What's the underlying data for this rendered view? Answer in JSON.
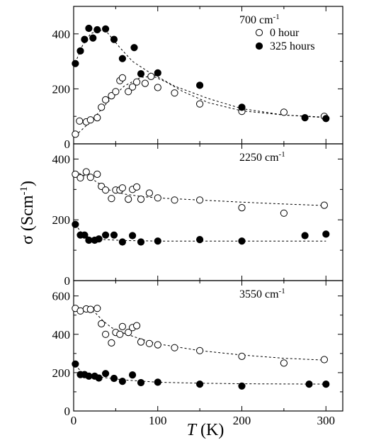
{
  "chart_data": [
    {
      "type": "scatter",
      "title": "700 cm",
      "title_sup": "-1",
      "legend_position": "top-right",
      "xlim": [
        0,
        320
      ],
      "ylim": [
        0,
        500
      ],
      "yticks": [
        0,
        200,
        400
      ],
      "series": [
        {
          "name": "0 hour",
          "marker": "open-circle",
          "points": [
            [
              2,
              35
            ],
            [
              7,
              83
            ],
            [
              15,
              80
            ],
            [
              20,
              87
            ],
            [
              28,
              95
            ],
            [
              33,
              133
            ],
            [
              38,
              160
            ],
            [
              45,
              175
            ],
            [
              50,
              190
            ],
            [
              55,
              230
            ],
            [
              58,
              240
            ],
            [
              65,
              190
            ],
            [
              70,
              207
            ],
            [
              75,
              225
            ],
            [
              85,
              220
            ],
            [
              92,
              245
            ],
            [
              100,
              205
            ],
            [
              120,
              185
            ],
            [
              150,
              145
            ],
            [
              200,
              118
            ],
            [
              250,
              115
            ],
            [
              298,
              100
            ]
          ],
          "fit": [
            [
              2,
              30
            ],
            [
              20,
              80
            ],
            [
              40,
              150
            ],
            [
              60,
              210
            ],
            [
              80,
              242
            ],
            [
              95,
              245
            ],
            [
              110,
              225
            ],
            [
              130,
              190
            ],
            [
              160,
              150
            ],
            [
              200,
              120
            ],
            [
              250,
              105
            ],
            [
              300,
              97
            ]
          ]
        },
        {
          "name": "325 hours",
          "marker": "filled-circle",
          "points": [
            [
              2,
              292
            ],
            [
              8,
              338
            ],
            [
              13,
              380
            ],
            [
              18,
              420
            ],
            [
              23,
              385
            ],
            [
              28,
              415
            ],
            [
              38,
              418
            ],
            [
              48,
              380
            ],
            [
              58,
              310
            ],
            [
              72,
              350
            ],
            [
              80,
              255
            ],
            [
              100,
              258
            ],
            [
              150,
              213
            ],
            [
              200,
              133
            ],
            [
              275,
              95
            ],
            [
              300,
              92
            ]
          ],
          "fit": [
            [
              2,
              295
            ],
            [
              10,
              355
            ],
            [
              20,
              400
            ],
            [
              30,
              415
            ],
            [
              40,
              405
            ],
            [
              55,
              350
            ],
            [
              70,
              300
            ],
            [
              90,
              260
            ],
            [
              120,
              210
            ],
            [
              160,
              165
            ],
            [
              200,
              128
            ],
            [
              250,
              105
            ],
            [
              300,
              95
            ]
          ]
        }
      ]
    },
    {
      "type": "scatter",
      "title": "2250 cm",
      "title_sup": "-1",
      "xlim": [
        0,
        320
      ],
      "ylim": [
        0,
        450
      ],
      "yticks": [
        0,
        200,
        400
      ],
      "series": [
        {
          "name": "0 hour",
          "marker": "open-circle",
          "points": [
            [
              2,
              350
            ],
            [
              8,
              338
            ],
            [
              15,
              358
            ],
            [
              20,
              340
            ],
            [
              28,
              350
            ],
            [
              33,
              310
            ],
            [
              38,
              298
            ],
            [
              45,
              270
            ],
            [
              50,
              298
            ],
            [
              55,
              298
            ],
            [
              58,
              305
            ],
            [
              65,
              268
            ],
            [
              70,
              300
            ],
            [
              75,
              308
            ],
            [
              80,
              268
            ],
            [
              90,
              288
            ],
            [
              100,
              272
            ],
            [
              120,
              265
            ],
            [
              150,
              265
            ],
            [
              200,
              240
            ],
            [
              250,
              222
            ],
            [
              298,
              248
            ]
          ],
          "fit": [
            [
              2,
              360
            ],
            [
              10,
              348
            ],
            [
              20,
              338
            ],
            [
              30,
              320
            ],
            [
              40,
              300
            ],
            [
              60,
              285
            ],
            [
              80,
              277
            ],
            [
              100,
              272
            ],
            [
              150,
              265
            ],
            [
              200,
              258
            ],
            [
              250,
              252
            ],
            [
              300,
              247
            ]
          ]
        },
        {
          "name": "325 hours",
          "marker": "filled-circle",
          "points": [
            [
              2,
              185
            ],
            [
              8,
              150
            ],
            [
              13,
              150
            ],
            [
              18,
              133
            ],
            [
              25,
              133
            ],
            [
              30,
              137
            ],
            [
              38,
              150
            ],
            [
              48,
              150
            ],
            [
              58,
              127
            ],
            [
              70,
              148
            ],
            [
              80,
              127
            ],
            [
              100,
              130
            ],
            [
              150,
              135
            ],
            [
              200,
              130
            ],
            [
              275,
              148
            ],
            [
              300,
              153
            ]
          ],
          "fit": [
            [
              2,
              185
            ],
            [
              10,
              155
            ],
            [
              20,
              140
            ],
            [
              35,
              135
            ],
            [
              60,
              132
            ],
            [
              100,
              130
            ],
            [
              200,
              130
            ],
            [
              300,
              130
            ]
          ]
        }
      ]
    },
    {
      "type": "scatter",
      "title": "3550 cm",
      "title_sup": "-1",
      "xlabel": "T (K)",
      "xlim": [
        0,
        320
      ],
      "ylim": [
        0,
        680
      ],
      "yticks": [
        0,
        200,
        400,
        600
      ],
      "xticks": [
        0,
        100,
        200,
        300
      ],
      "series": [
        {
          "name": "0 hour",
          "marker": "open-circle",
          "points": [
            [
              2,
              535
            ],
            [
              8,
              522
            ],
            [
              15,
              532
            ],
            [
              20,
              530
            ],
            [
              28,
              535
            ],
            [
              33,
              455
            ],
            [
              38,
              400
            ],
            [
              45,
              355
            ],
            [
              50,
              410
            ],
            [
              55,
              400
            ],
            [
              58,
              440
            ],
            [
              65,
              410
            ],
            [
              70,
              435
            ],
            [
              75,
              445
            ],
            [
              80,
              360
            ],
            [
              90,
              352
            ],
            [
              100,
              345
            ],
            [
              120,
              330
            ],
            [
              150,
              315
            ],
            [
              200,
              285
            ],
            [
              250,
              250
            ],
            [
              298,
              268
            ]
          ],
          "fit": [
            [
              2,
              538
            ],
            [
              15,
              530
            ],
            [
              25,
              515
            ],
            [
              35,
              470
            ],
            [
              45,
              435
            ],
            [
              60,
              405
            ],
            [
              80,
              375
            ],
            [
              100,
              350
            ],
            [
              150,
              315
            ],
            [
              200,
              292
            ],
            [
              250,
              275
            ],
            [
              300,
              265
            ]
          ]
        },
        {
          "name": "325 hours",
          "marker": "filled-circle",
          "points": [
            [
              2,
              245
            ],
            [
              8,
              190
            ],
            [
              13,
              190
            ],
            [
              18,
              182
            ],
            [
              25,
              182
            ],
            [
              30,
              172
            ],
            [
              38,
              195
            ],
            [
              48,
              170
            ],
            [
              58,
              155
            ],
            [
              70,
              188
            ],
            [
              80,
              148
            ],
            [
              100,
              150
            ],
            [
              150,
              140
            ],
            [
              200,
              130
            ],
            [
              280,
              140
            ],
            [
              300,
              140
            ]
          ],
          "fit": [
            [
              2,
              240
            ],
            [
              10,
              200
            ],
            [
              20,
              185
            ],
            [
              35,
              175
            ],
            [
              60,
              162
            ],
            [
              100,
              150
            ],
            [
              150,
              145
            ],
            [
              200,
              142
            ],
            [
              300,
              140
            ]
          ]
        }
      ]
    }
  ],
  "y_axis_title": "σ (Scm",
  "y_axis_title_sup": "-1",
  "y_axis_title_end": ")",
  "x_axis_title_var": "T",
  "x_axis_title_unit": " (K)"
}
